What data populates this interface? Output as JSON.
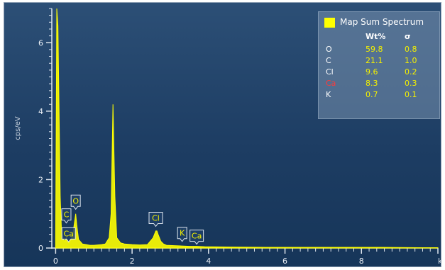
{
  "chart_data": {
    "type": "line",
    "title": "",
    "xlabel": "ke",
    "ylabel": "cps/eV",
    "xlim": [
      -0.1,
      10.0
    ],
    "ylim": [
      0,
      7
    ],
    "xticks": [
      0,
      2,
      4,
      6,
      8
    ],
    "yticks": [
      0,
      2,
      4,
      6
    ],
    "legend_position": "top-right",
    "series": [
      {
        "name": "Map Sum Spectrum",
        "color": "#ffff00",
        "x": [
          0.0,
          0.03,
          0.06,
          0.09,
          0.12,
          0.15,
          0.2,
          0.25,
          0.28,
          0.3,
          0.35,
          0.4,
          0.45,
          0.5,
          0.525,
          0.55,
          0.6,
          0.7,
          0.8,
          0.9,
          1.0,
          1.1,
          1.2,
          1.3,
          1.4,
          1.45,
          1.5,
          1.55,
          1.6,
          1.7,
          1.8,
          2.0,
          2.2,
          2.4,
          2.55,
          2.62,
          2.65,
          2.68,
          2.75,
          2.82,
          2.9,
          3.1,
          3.3,
          3.5,
          3.69,
          3.9,
          4.5,
          5.5,
          6.5,
          7.5,
          8.5,
          9.5,
          10.0
        ],
        "y": [
          0.2,
          7.0,
          6.5,
          4.0,
          1.5,
          0.6,
          0.25,
          0.2,
          0.3,
          0.2,
          0.15,
          0.25,
          0.4,
          0.8,
          1.0,
          0.7,
          0.25,
          0.12,
          0.1,
          0.08,
          0.08,
          0.09,
          0.1,
          0.12,
          0.3,
          1.0,
          4.2,
          1.5,
          0.3,
          0.15,
          0.12,
          0.1,
          0.09,
          0.1,
          0.3,
          0.5,
          0.5,
          0.4,
          0.2,
          0.12,
          0.08,
          0.07,
          0.06,
          0.05,
          0.05,
          0.04,
          0.03,
          0.02,
          0.02,
          0.02,
          0.02,
          0.01,
          0.01
        ]
      }
    ],
    "peak_labels": [
      {
        "label": "C",
        "x": 0.28
      },
      {
        "label": "Ca",
        "x": 0.34
      },
      {
        "label": "O",
        "x": 0.525
      },
      {
        "label": "Cl",
        "x": 2.62
      },
      {
        "label": "K",
        "x": 3.31
      },
      {
        "label": "Ca",
        "x": 3.69
      }
    ]
  },
  "legend": {
    "title": "Map Sum Spectrum",
    "swatch_color": "#ffff00",
    "header_wt": "Wt%",
    "header_sigma": "σ",
    "rows": [
      {
        "element": "O",
        "wt": "59.8",
        "sigma": "0.8",
        "color": "#ffffff"
      },
      {
        "element": "C",
        "wt": "21.1",
        "sigma": "1.0",
        "color": "#ffffff"
      },
      {
        "element": "Cl",
        "wt": "9.6",
        "sigma": "0.2",
        "color": "#ffffff"
      },
      {
        "element": "Ca",
        "wt": "8.3",
        "sigma": "0.3",
        "color": "#ff3a3a"
      },
      {
        "element": "K",
        "wt": "0.7",
        "sigma": "0.1",
        "color": "#ffffff"
      }
    ]
  }
}
